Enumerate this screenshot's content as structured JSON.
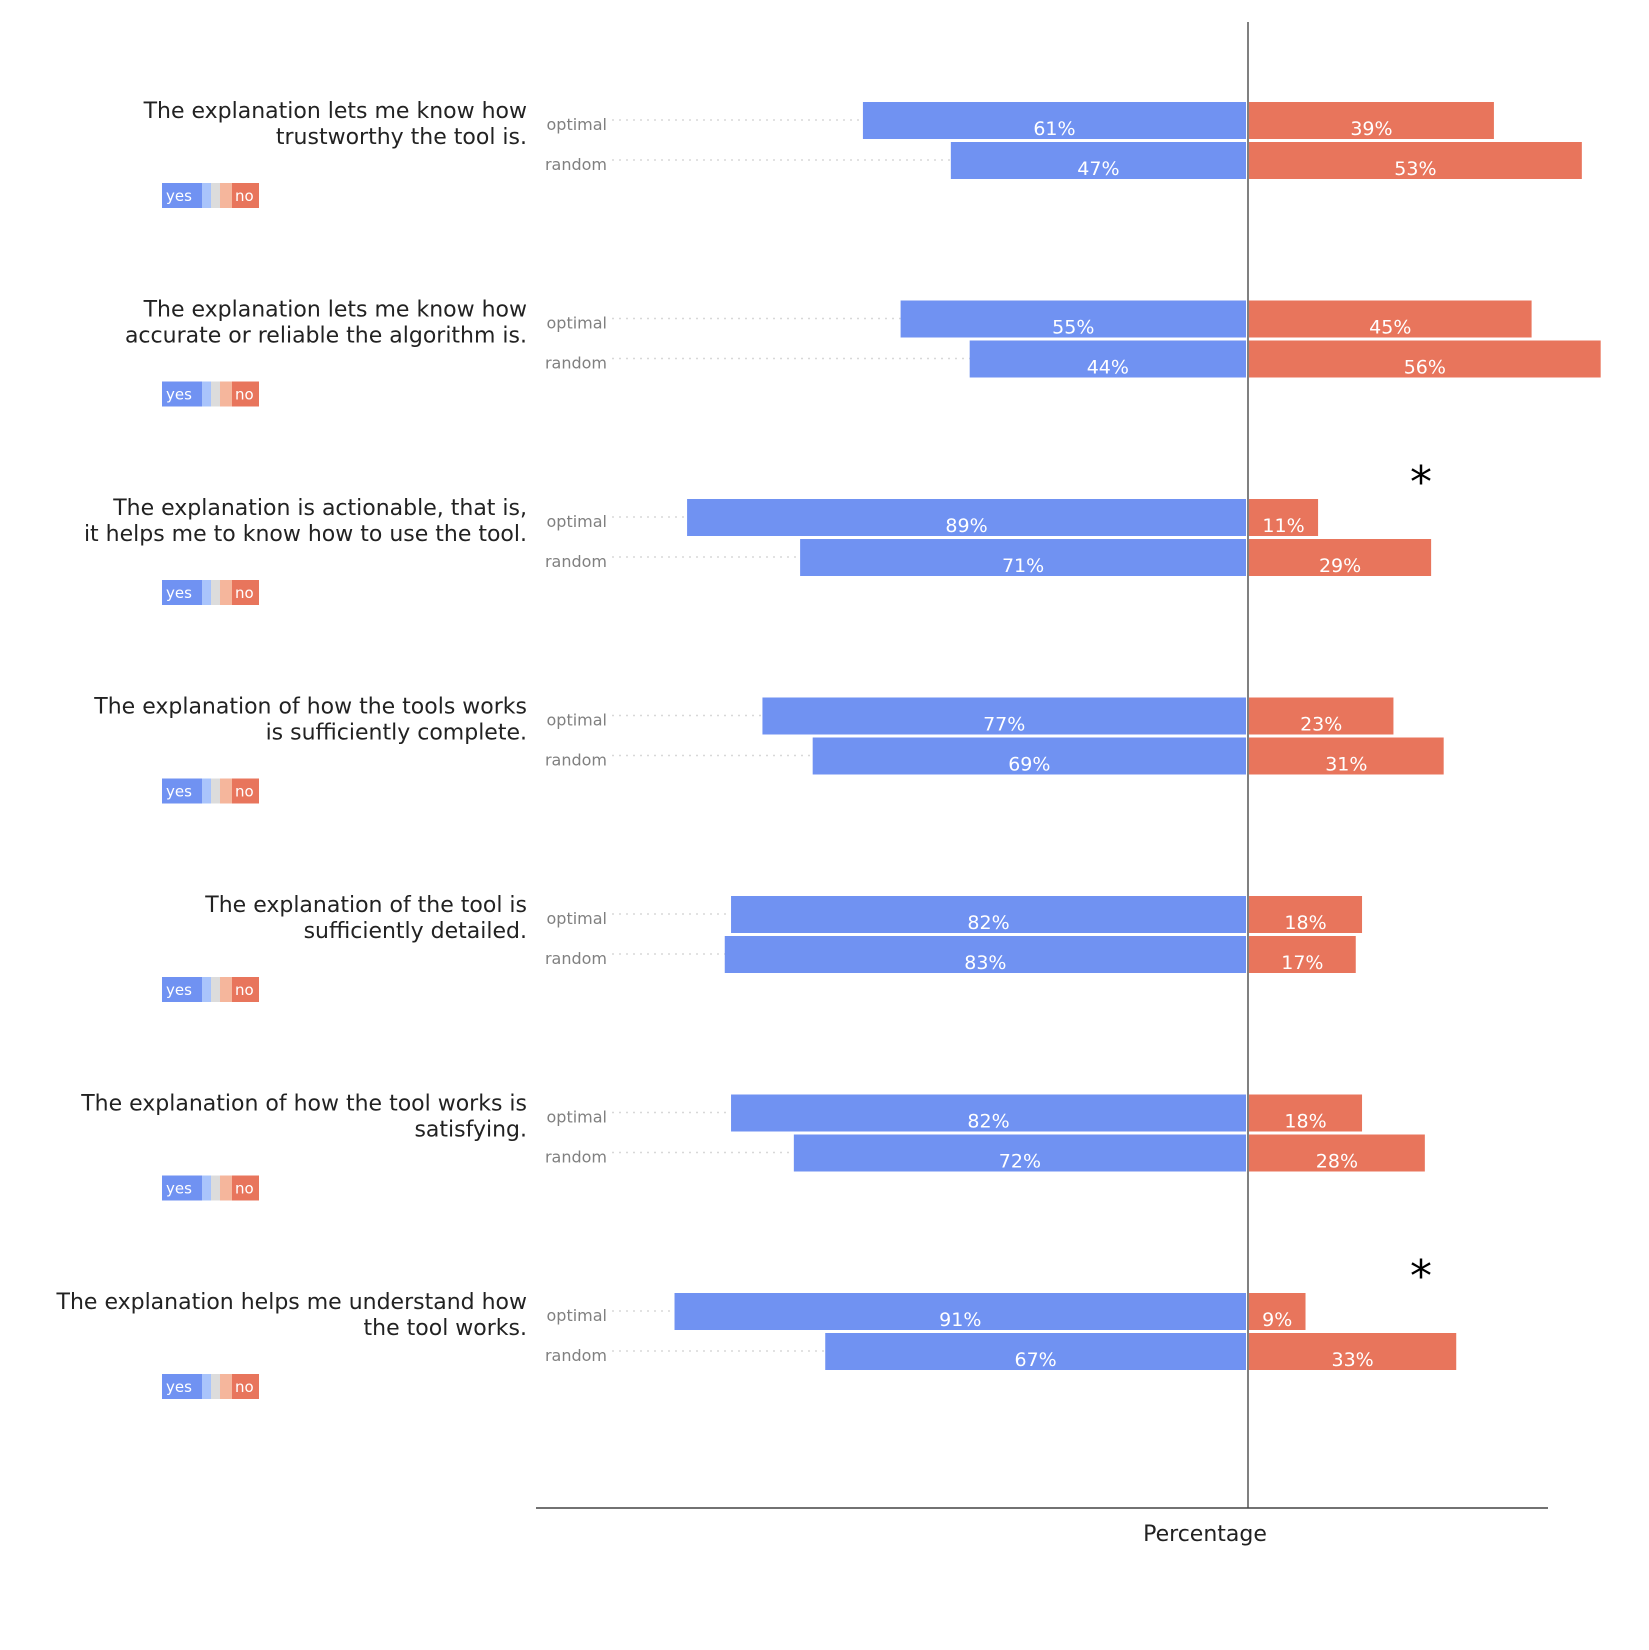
{
  "chart_data": {
    "type": "bar",
    "orientation": "horizontal-diverging",
    "xlabel": "Percentage",
    "legend": {
      "yes_label": "yes",
      "no_label": "no",
      "placement": "below each question"
    },
    "colors": {
      "yes": "#7092f2",
      "no": "#e8755c",
      "yes_light": "#a9c4fb",
      "neutral": "#dcdcdc",
      "no_light": "#f5b69c",
      "center_line": "#808080"
    },
    "series_names": [
      "optimal",
      "random"
    ],
    "questions": [
      {
        "text": [
          "The explanation lets me know how",
          "trustworthy the tool is."
        ],
        "optimal": {
          "yes": 61,
          "no": 39
        },
        "random": {
          "yes": 47,
          "no": 53
        },
        "significant": false
      },
      {
        "text": [
          "The explanation lets me know how",
          "accurate or reliable the algorithm is."
        ],
        "optimal": {
          "yes": 55,
          "no": 45
        },
        "random": {
          "yes": 44,
          "no": 56
        },
        "significant": false
      },
      {
        "text": [
          "The explanation is actionable, that is,",
          "it helps me to know how to use the tool."
        ],
        "optimal": {
          "yes": 89,
          "no": 11
        },
        "random": {
          "yes": 71,
          "no": 29
        },
        "significant": true
      },
      {
        "text": [
          "The explanation of how the tools works",
          "is sufficiently complete."
        ],
        "optimal": {
          "yes": 77,
          "no": 23
        },
        "random": {
          "yes": 69,
          "no": 31
        },
        "significant": false
      },
      {
        "text": [
          "The explanation of the tool is",
          "sufficiently detailed."
        ],
        "optimal": {
          "yes": 82,
          "no": 18
        },
        "random": {
          "yes": 83,
          "no": 17
        },
        "significant": false
      },
      {
        "text": [
          "The explanation of how the tool works is",
          "satisfying."
        ],
        "optimal": {
          "yes": 82,
          "no": 18
        },
        "random": {
          "yes": 72,
          "no": 28
        },
        "significant": false
      },
      {
        "text": [
          "The explanation helps me understand how",
          "the tool works."
        ],
        "optimal": {
          "yes": 91,
          "no": 9
        },
        "random": {
          "yes": 67,
          "no": 33
        },
        "significant": true
      }
    ],
    "significance_marker": "*",
    "grid": false
  }
}
